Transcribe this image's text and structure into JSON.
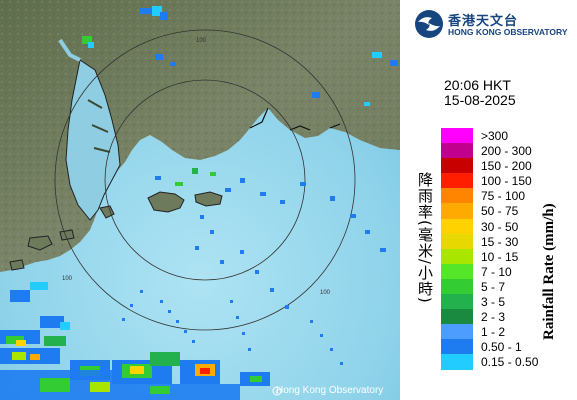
{
  "logo": {
    "chinese": "香港天文台",
    "english": "HONG KONG OBSERVATORY"
  },
  "timestamp": {
    "time": "20:06 HKT",
    "date": "15-08-2025"
  },
  "legend": {
    "title_chinese": "降雨率(毫米/小時)",
    "title_english": "Rainfall Rate (mm/h)",
    "entries": [
      {
        "label": ">300",
        "color": "#ff00ff"
      },
      {
        "label": "200 - 300",
        "color": "#c2008e"
      },
      {
        "label": "150 - 200",
        "color": "#c80000"
      },
      {
        "label": "100 - 150",
        "color": "#ff1e00"
      },
      {
        "label": "75 - 100",
        "color": "#ff8400"
      },
      {
        "label": "50 - 75",
        "color": "#ffaa00"
      },
      {
        "label": "30 - 50",
        "color": "#ffd200"
      },
      {
        "label": "15 - 30",
        "color": "#e6d800"
      },
      {
        "label": "10 - 15",
        "color": "#a8e600"
      },
      {
        "label": "7 - 10",
        "color": "#55e629"
      },
      {
        "label": "5 - 7",
        "color": "#33cc33"
      },
      {
        "label": "3 - 5",
        "color": "#22b14c"
      },
      {
        "label": "2 - 3",
        "color": "#1a8a40"
      },
      {
        "label": "1 - 2",
        "color": "#4d9cff"
      },
      {
        "label": "0.50 - 1",
        "color": "#1e7cf0"
      },
      {
        "label": "0.15 - 0.50",
        "color": "#22ccff"
      }
    ]
  },
  "map": {
    "range_labels": [
      "100",
      "100",
      "100"
    ],
    "copyright": "Hong Kong Observatory"
  }
}
